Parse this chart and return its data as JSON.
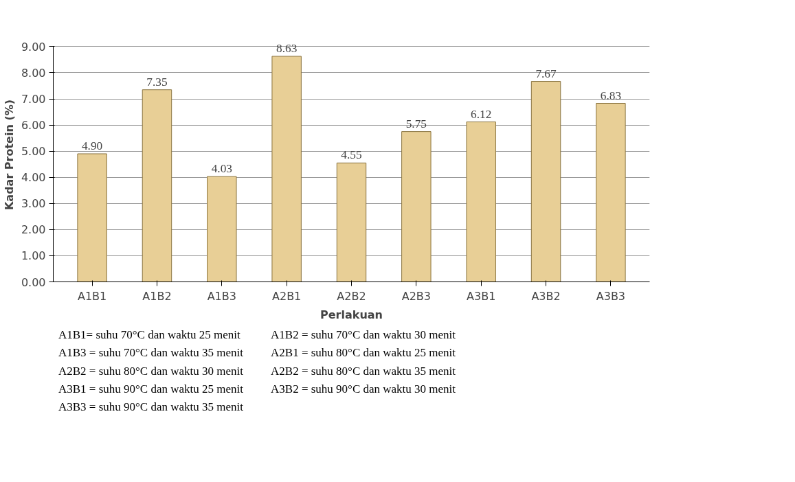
{
  "chart_data": {
    "type": "bar",
    "xlabel": "Perlakuan",
    "ylabel": "Kadar Protein (%)",
    "categories": [
      "A1B1",
      "A1B2",
      "A1B3",
      "A2B1",
      "A2B2",
      "A2B3",
      "A3B1",
      "A3B2",
      "A3B3"
    ],
    "values": [
      4.9,
      7.35,
      4.03,
      8.63,
      4.55,
      5.75,
      6.12,
      7.67,
      6.83
    ],
    "color": "#e8cf96",
    "ylim": [
      0,
      9
    ],
    "yticks": [
      {
        "value": 0,
        "label": "0.00"
      },
      {
        "value": 1,
        "label": "1.00"
      },
      {
        "value": 2,
        "label": "2.00"
      },
      {
        "value": 3,
        "label": "3.00"
      },
      {
        "value": 4,
        "label": "4.00"
      },
      {
        "value": 5,
        "label": "5.00"
      },
      {
        "value": 6,
        "label": "6.00"
      },
      {
        "value": 7,
        "label": "7.00"
      },
      {
        "value": 8,
        "label": "8.00"
      },
      {
        "value": 9,
        "label": "9.00"
      }
    ],
    "grid": "y",
    "value_labels": [
      "4.90",
      "7.35",
      "4.03",
      "8.63",
      "4.55",
      "5.75",
      "6.12",
      "7.67",
      "6.83"
    ],
    "annotations": [
      "A1B1= suhu 70°C dan waktu 25 menit",
      "A1B2 = suhu 70°C dan waktu 30 menit",
      "A1B3 = suhu 70°C dan waktu 35 menit",
      "A2B1 = suhu 80°C dan waktu 25 menit",
      "A2B2 = suhu 80°C dan waktu 30 menit",
      "A2B2 = suhu 80°C dan waktu 35 menit",
      "A3B1 = suhu 90°C dan waktu 25 menit",
      "A3B2 = suhu 90°C dan waktu 30 menit",
      "A3B3 = suhu 90°C dan waktu 35 menit"
    ]
  }
}
